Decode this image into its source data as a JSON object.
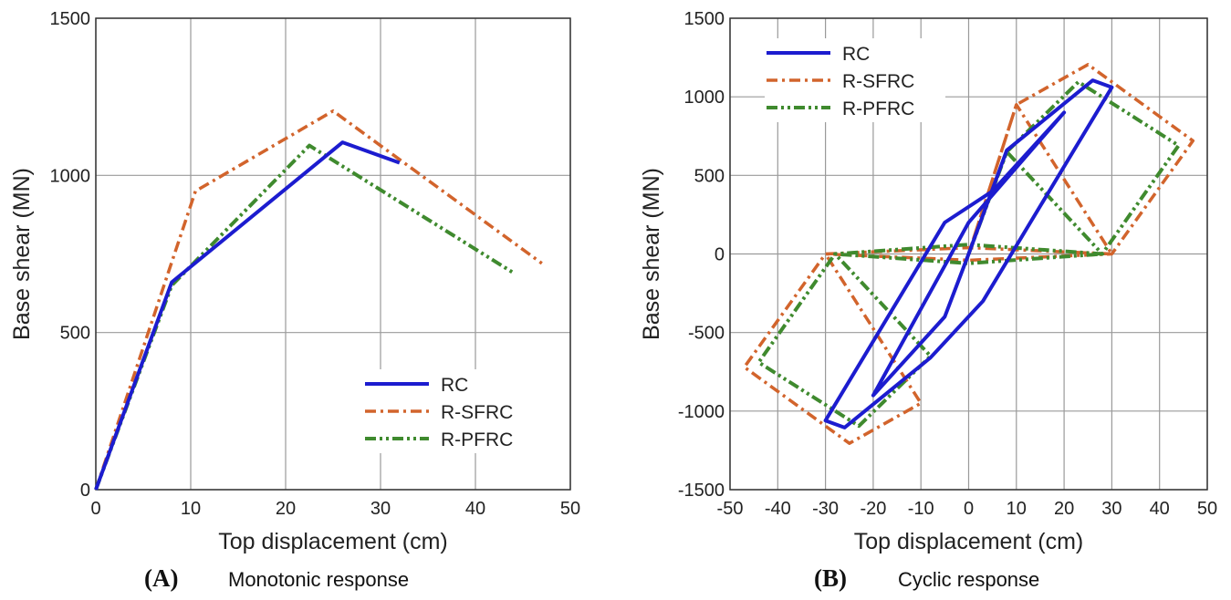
{
  "colors": {
    "RC": "#1c1ccf",
    "R-SFRC": "#d2642c",
    "R-PFRC": "#3f8a2e",
    "grid": "#9a9a9a",
    "frame": "#333333"
  },
  "chart_data": [
    {
      "type": "line",
      "panel_letter": "(A)",
      "caption": "Monotonic response",
      "xlabel": "Top displacement (cm)",
      "ylabel": "Base shear (MN)",
      "xlim": [
        0,
        50
      ],
      "ylim": [
        0,
        1500
      ],
      "xticks": [
        0,
        10,
        20,
        30,
        40,
        50
      ],
      "yticks": [
        0,
        500,
        1000,
        1500
      ],
      "grid": true,
      "legend_position": "bottom-right",
      "series": [
        {
          "name": "RC",
          "style": "solid",
          "x": [
            0,
            8,
            26,
            32
          ],
          "y": [
            0,
            660,
            1105,
            1040
          ]
        },
        {
          "name": "R-SFRC",
          "style": "dashdot",
          "x": [
            0,
            10.5,
            25,
            47
          ],
          "y": [
            0,
            950,
            1205,
            720
          ]
        },
        {
          "name": "R-PFRC",
          "style": "dashdotdot",
          "x": [
            0,
            8,
            22.5,
            44
          ],
          "y": [
            0,
            650,
            1095,
            690
          ]
        }
      ]
    },
    {
      "type": "line",
      "panel_letter": "(B)",
      "caption": "Cyclic response",
      "xlabel": "Top displacement (cm)",
      "ylabel": "Base shear (MN)",
      "xlim": [
        -50,
        50
      ],
      "ylim": [
        -1500,
        1500
      ],
      "xticks": [
        -50,
        -40,
        -30,
        -20,
        -10,
        0,
        10,
        20,
        30,
        40,
        50
      ],
      "yticks": [
        -1500,
        -1000,
        -500,
        0,
        500,
        1000,
        1500
      ],
      "grid": true,
      "legend_position": "top-left",
      "series": [
        {
          "name": "RC",
          "style": "solid",
          "x": [
            0,
            8,
            26,
            30,
            3,
            -8,
            -26,
            -30,
            -5,
            5,
            20,
            0,
            -20,
            -5,
            0
          ],
          "y": [
            0,
            660,
            1105,
            1060,
            -300,
            -660,
            -1105,
            -1060,
            200,
            400,
            900,
            200,
            -900,
            -400,
            0
          ]
        },
        {
          "name": "R-SFRC",
          "style": "dashdot",
          "x": [
            0,
            10,
            25,
            47,
            30,
            0,
            -30,
            -10,
            -25,
            -47,
            -30,
            0,
            30,
            10,
            0
          ],
          "y": [
            0,
            950,
            1205,
            720,
            0,
            -40,
            0,
            -950,
            -1205,
            -720,
            0,
            40,
            0,
            950,
            0
          ]
        },
        {
          "name": "R-PFRC",
          "style": "dashdotdot",
          "x": [
            0,
            8,
            23,
            44,
            28,
            0,
            -28,
            -8,
            -23,
            -44,
            -28,
            0,
            28,
            8,
            0
          ],
          "y": [
            0,
            650,
            1095,
            690,
            0,
            -60,
            0,
            -650,
            -1095,
            -690,
            0,
            60,
            0,
            650,
            0
          ]
        }
      ]
    }
  ]
}
